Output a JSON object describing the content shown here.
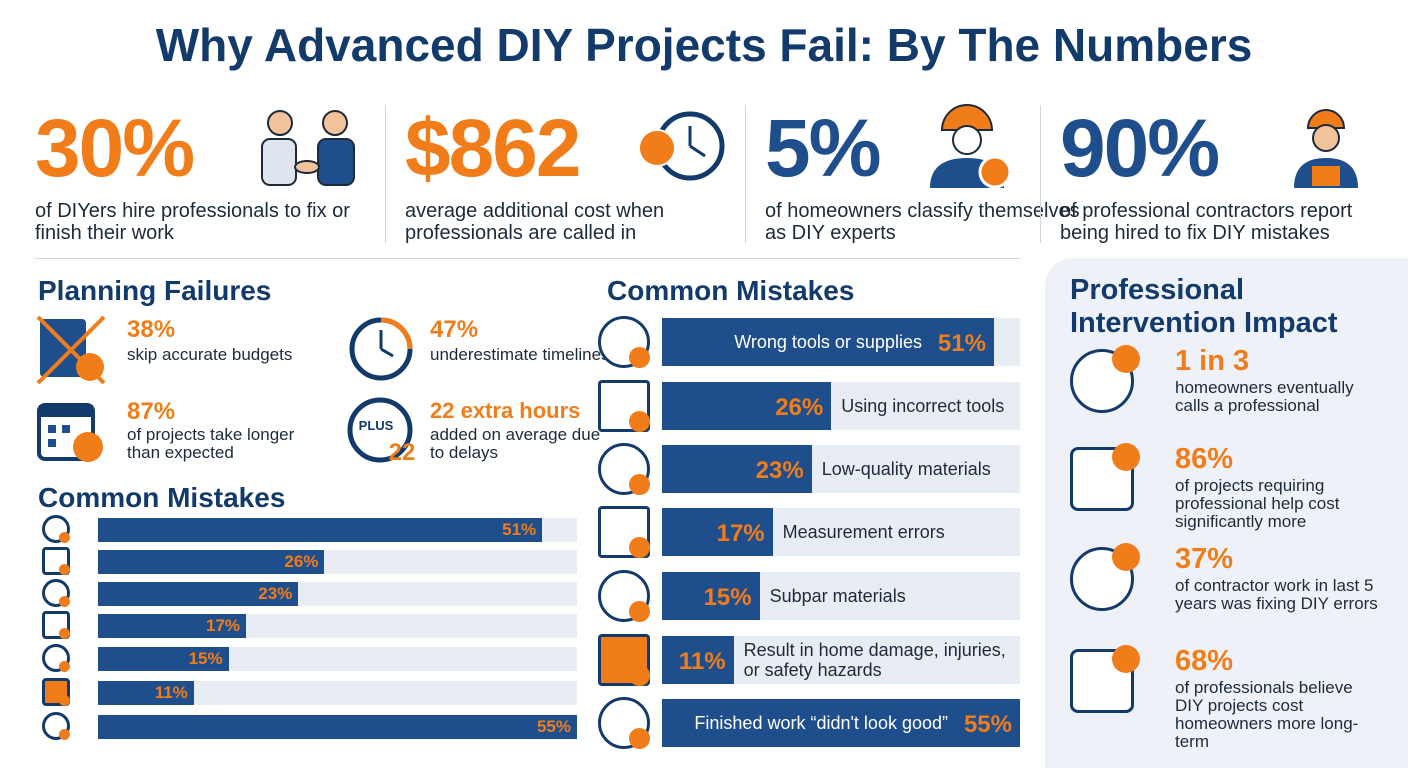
{
  "title": "Why Advanced DIY Projects Fail: By The Numbers",
  "stats": [
    {
      "value": "30%",
      "text": "of DIYers hire professionals to fix or finish their work"
    },
    {
      "value": "$862",
      "text": "average additional cost when professionals are called in"
    },
    {
      "value": "5%",
      "text": "of homeowners classify themselves as DIY experts"
    },
    {
      "value": "90%",
      "text": "of professional contractors report being hired to fix DIY mistakes"
    }
  ],
  "planning": {
    "title": "Planning Failures",
    "items": [
      {
        "value": "38%",
        "text": "skip accurate budgets"
      },
      {
        "value": "47%",
        "text": "underestimate timelines"
      },
      {
        "value": "87%",
        "text": "of projects take longer than expected"
      },
      {
        "value": "22 extra hours",
        "text": "added on average due to delays"
      }
    ],
    "badge": {
      "top": "PLUS",
      "number": "22"
    }
  },
  "mistakes_chart": {
    "type": "bar",
    "title": "Common Mistakes",
    "values": [
      51,
      26,
      23,
      17,
      15,
      11,
      55
    ],
    "value_labels": [
      "51%",
      "26%",
      "23%",
      "17%",
      "15%",
      "11%",
      "55%"
    ]
  },
  "mistakes_list": {
    "type": "bar",
    "title": "Common Mistakes",
    "categories": [
      "Wrong tools or supplies",
      "Using incorrect tools",
      "Low-quality materials",
      "Measurement errors",
      "Subpar materials",
      "Result in home damage, injuries, or safety hazards",
      "Finished work “didn't look good”"
    ],
    "values": [
      51,
      26,
      23,
      17,
      15,
      11,
      55
    ],
    "value_labels": [
      "51%",
      "26%",
      "23%",
      "17%",
      "15%",
      "11%",
      "55%"
    ]
  },
  "impact": {
    "title": "Professional Intervention Impact",
    "items": [
      {
        "value": "1 in 3",
        "text": "homeowners eventually calls a professional"
      },
      {
        "value": "86%",
        "text": "of projects requiring professional help cost significantly more"
      },
      {
        "value": "37%",
        "text": "of contractor work in last 5 years was fixing DIY errors"
      },
      {
        "value": "68%",
        "text": "of professionals believe DIY projects cost homeowners more long-term"
      }
    ]
  }
}
